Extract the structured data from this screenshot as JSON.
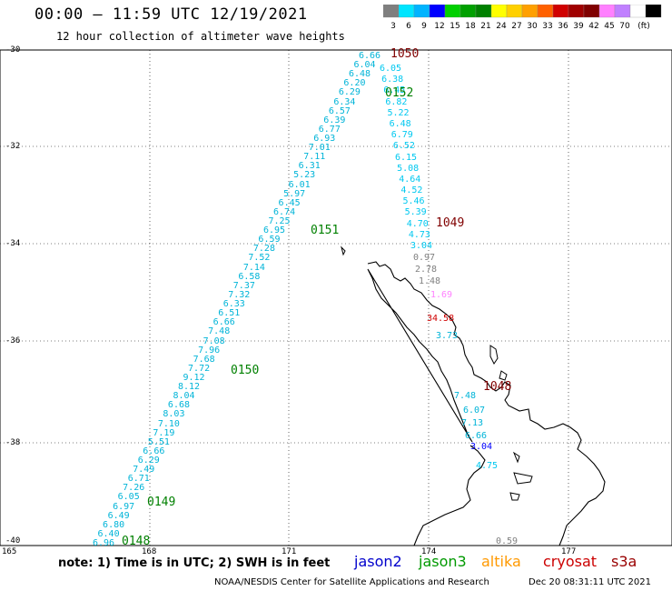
{
  "header": {
    "title": "00:00 – 11:59 UTC 12/19/2021",
    "subtitle": "12 hour collection of altimeter wave heights"
  },
  "legend": {
    "colors": [
      "#7f7f7f",
      "#00e5ff",
      "#00b4ff",
      "#0000ff",
      "#00d000",
      "#00a000",
      "#008000",
      "#ffff00",
      "#ffd000",
      "#ffa000",
      "#ff6000",
      "#d00000",
      "#a00000",
      "#800000",
      "#ff80ff",
      "#c080ff",
      "#ffffff",
      "#000000"
    ],
    "labels": [
      "3",
      "6",
      "9",
      "12",
      "15",
      "18",
      "21",
      "24",
      "27",
      "30",
      "33",
      "36",
      "39",
      "42",
      "45",
      "70",
      "(ft)"
    ]
  },
  "axes": {
    "lat_labels": [
      "-30",
      "-32",
      "-34",
      "-36",
      "-38",
      "-40"
    ],
    "lon_labels": [
      "165",
      "168",
      "171",
      "174",
      "177"
    ]
  },
  "passes": {
    "west_track": [
      "6.66",
      "6.04",
      "6.48",
      "6.20",
      "6.29",
      "6.34",
      "6.57",
      "6.39",
      "6.77",
      "6.93",
      "7.01",
      "7.11",
      "6.31",
      "5.23",
      "6.01",
      "5.97",
      "6.45",
      "6.74",
      "7.25",
      "6.95",
      "6.59",
      "7.28",
      "7.52",
      "7.14",
      "6.58",
      "7.37",
      "7.32",
      "6.33",
      "6.51",
      "6.66",
      "7.48",
      "7.08",
      "7.96",
      "7.68",
      "7.72",
      "9.12",
      "8.12",
      "8.04",
      "6.68",
      "8.03",
      "7.10",
      "7.19",
      "5.51",
      "6.66",
      "6.29",
      "7.49",
      "6.71",
      "7.26",
      "6.05",
      "6.97",
      "6.49",
      "6.80",
      "6.40",
      "6.96"
    ],
    "east_track": [
      "6.05",
      "6.38",
      "6.45",
      "6.82",
      "5.22",
      "6.48",
      "6.79",
      "6.52",
      "6.15",
      "5.08",
      "4.64",
      "4.52",
      "5.46",
      "5.39",
      "4.70",
      "4.73",
      "3.04"
    ],
    "gray_vals": [
      "0.97",
      "2.78",
      "1.48",
      "0.59"
    ],
    "misc_vals": [
      "1.69",
      "34.58",
      "3.73",
      "7.48",
      "6.07",
      "7.13",
      "6.66",
      "4.75",
      "3.04"
    ],
    "time_labels": {
      "t1050": "1050",
      "t0152": "0152",
      "t1049": "1049",
      "t0151": "0151",
      "t0150": "0150",
      "t1048": "1048",
      "t0149": "0149",
      "t0148": "0148"
    }
  },
  "footer": {
    "note": "note: 1) Time is in UTC; 2) SWH is in feet",
    "satellites": [
      {
        "name": "jason2",
        "color": "#0000cc"
      },
      {
        "name": "jason3",
        "color": "#009900"
      },
      {
        "name": "altika",
        "color": "#ff9900"
      },
      {
        "name": "cryosat",
        "color": "#cc0000"
      },
      {
        "name": "s3a",
        "color": "#990000"
      }
    ],
    "credit": "NOAA/NESDIS Center for Satellite Applications and Research",
    "timestamp": "Dec 20 08:31:11 UTC 2021"
  }
}
